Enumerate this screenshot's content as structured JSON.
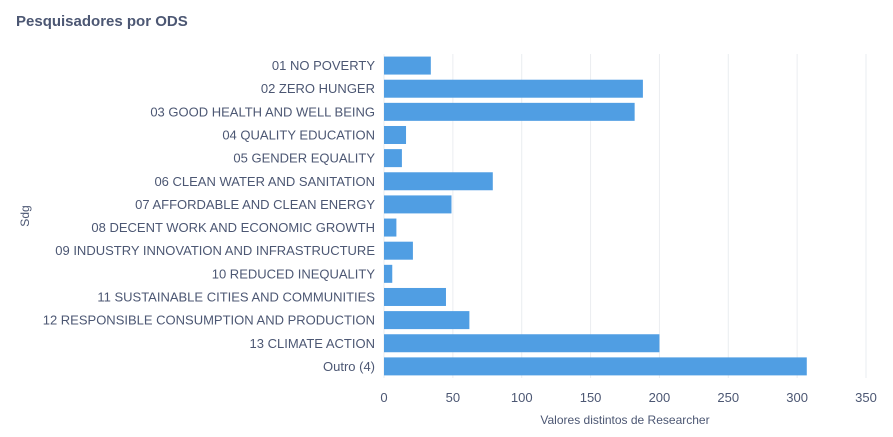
{
  "card": {
    "title": "Pesquisadores por ODS"
  },
  "chart_data": {
    "type": "bar",
    "orientation": "horizontal",
    "title": "Pesquisadores por ODS",
    "xlabel": "Valores distintos de Researcher",
    "ylabel": "Sdg",
    "categories": [
      "01 NO POVERTY",
      "02 ZERO HUNGER",
      "03 GOOD HEALTH AND WELL BEING",
      "04 QUALITY EDUCATION",
      "05 GENDER EQUALITY",
      "06 CLEAN WATER AND SANITATION",
      "07 AFFORDABLE AND CLEAN ENERGY",
      "08 DECENT WORK AND ECONOMIC GROWTH",
      "09 INDUSTRY INNOVATION AND INFRASTRUCTURE",
      "10 REDUCED INEQUALITY",
      "11 SUSTAINABLE CITIES AND COMMUNITIES",
      "12 RESPONSIBLE CONSUMPTION AND PRODUCTION",
      "13 CLIMATE ACTION",
      "Outro (4)"
    ],
    "values": [
      34,
      188,
      182,
      16,
      13,
      79,
      49,
      9,
      21,
      6,
      45,
      62,
      200,
      307
    ],
    "xlim": [
      0,
      350
    ],
    "xticks": [
      0,
      50,
      100,
      150,
      200,
      250,
      300,
      350
    ],
    "grid": true,
    "bar_color": "#509ee3",
    "grid_color": "#eaedf0",
    "text_color": "#4c5773"
  }
}
